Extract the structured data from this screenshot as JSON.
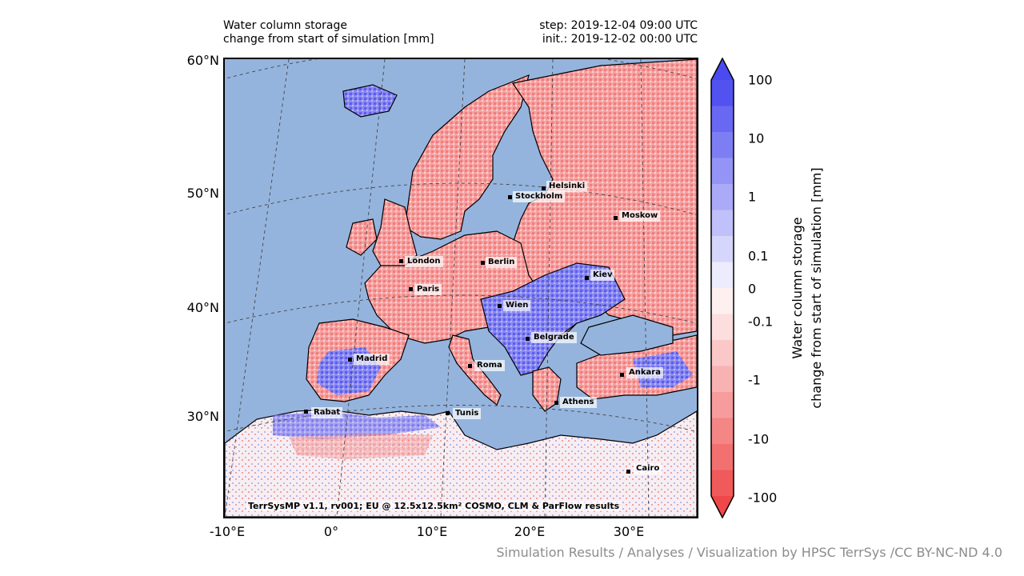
{
  "title": {
    "left": "Water column storage\nchange from start of simulation [mm]",
    "right": "step: 2019-12-04 09:00 UTC\ninit.: 2019-12-02 00:00 UTC"
  },
  "lat_ticks": [
    "60°N",
    "50°N",
    "40°N",
    "30°N"
  ],
  "lon_ticks": [
    "-10°E",
    "0°",
    "10°E",
    "20°E",
    "30°E"
  ],
  "cities": [
    {
      "name": "Helsinki"
    },
    {
      "name": "Stockholm"
    },
    {
      "name": "Moskow"
    },
    {
      "name": "London"
    },
    {
      "name": "Berlin"
    },
    {
      "name": "Kiev"
    },
    {
      "name": "Paris"
    },
    {
      "name": "Wien"
    },
    {
      "name": "Belgrade"
    },
    {
      "name": "Madrid"
    },
    {
      "name": "Roma"
    },
    {
      "name": "Ankara"
    },
    {
      "name": "Athens"
    },
    {
      "name": "Rabat"
    },
    {
      "name": "Tunis"
    },
    {
      "name": "Cairo"
    }
  ],
  "map_credit": "TerrSysMP v1.1, rv001; EU @ 12.5x12.5km² COSMO, CLM & ParFlow results",
  "colorbar": {
    "label": "Water column storage\nchange from start of simulation [mm]",
    "ticks": [
      "100",
      "10",
      "1",
      "0.1",
      "0",
      "-0.1",
      "-1",
      "-10",
      "-100"
    ],
    "colors": [
      "#5252f0",
      "#6868f2",
      "#7e7ef4",
      "#9494f6",
      "#aaaaf8",
      "#c0c0fa",
      "#d6d6fc",
      "#ececfe",
      "#fff0f0",
      "#fddede",
      "#fbc8c8",
      "#f9b2b2",
      "#f79c9c",
      "#f58686",
      "#f37070",
      "#f15a5a"
    ],
    "extend_max_color": "#4a4af0",
    "extend_min_color": "#f04848"
  },
  "colors": {
    "sea": "#95b4dd",
    "land_dry": "#f49a9a",
    "land_wet": "#7878ee",
    "desert": "#f6eef0"
  },
  "footer": "Simulation Results / Analyses / Visualization by HPSC TerrSys /CC BY-NC-ND 4.0"
}
